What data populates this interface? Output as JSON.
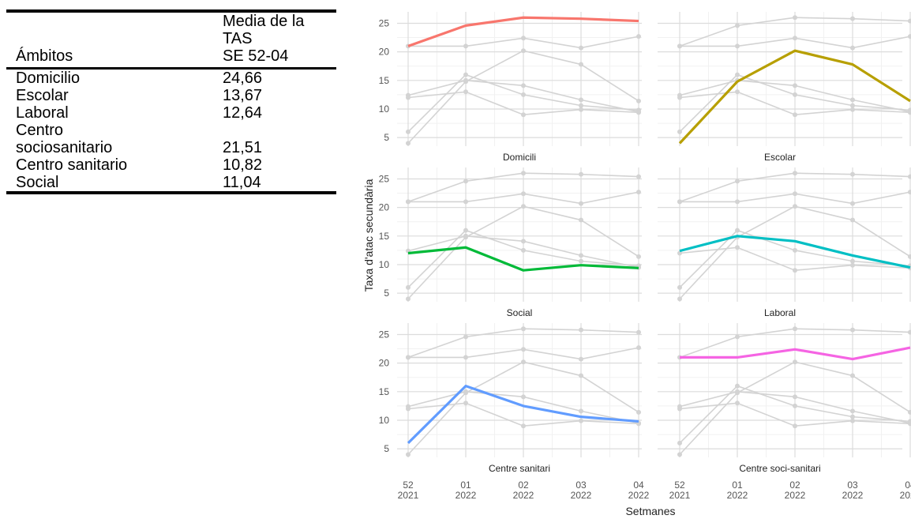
{
  "table": {
    "headers": [
      "Ámbitos",
      [
        "Media de la",
        "TAS",
        "SE 52-04"
      ]
    ],
    "rows": [
      {
        "label": [
          "Domicilio"
        ],
        "value": "24,66"
      },
      {
        "label": [
          "Escolar"
        ],
        "value": "13,67"
      },
      {
        "label": [
          "Laboral"
        ],
        "value": "12,64"
      },
      {
        "label": [
          "Centro",
          "sociosanitario"
        ],
        "value": "21,51"
      },
      {
        "label": [
          "Centro sanitario"
        ],
        "value": "10,82"
      },
      {
        "label": [
          "Social"
        ],
        "value": "11,04"
      }
    ]
  },
  "chart_data": {
    "type": "line",
    "facet_layout": "3 rows x 2 columns",
    "xlabel": "Setmanes",
    "ylabel": "Taxa d'atac secundària",
    "x": [
      "52\n2021",
      "01\n2022",
      "02\n2022",
      "03\n2022",
      "04\n2022"
    ],
    "ylim": [
      3.5,
      27
    ],
    "y_ticks": [
      5,
      10,
      15,
      20,
      25
    ],
    "grid": true,
    "series": [
      {
        "name": "Domicili",
        "color": "#F8766D",
        "values": [
          21,
          24.6,
          26,
          25.8,
          25.4
        ]
      },
      {
        "name": "Escolar",
        "color": "#B79F00",
        "values": [
          4,
          14.8,
          20.2,
          17.8,
          11.4
        ]
      },
      {
        "name": "Social",
        "color": "#00BA38",
        "values": [
          12,
          13,
          9,
          9.9,
          9.4
        ]
      },
      {
        "name": "Laboral",
        "color": "#00BFC4",
        "values": [
          12.4,
          15,
          14.1,
          11.6,
          9.5
        ]
      },
      {
        "name": "Centre sanitari",
        "color": "#619CFF",
        "values": [
          6,
          16,
          12.5,
          10.6,
          9.8
        ]
      },
      {
        "name": "Centre soci-sanitari",
        "color": "#F564E3",
        "values": [
          21,
          21,
          22.4,
          20.7,
          22.7
        ]
      }
    ]
  }
}
